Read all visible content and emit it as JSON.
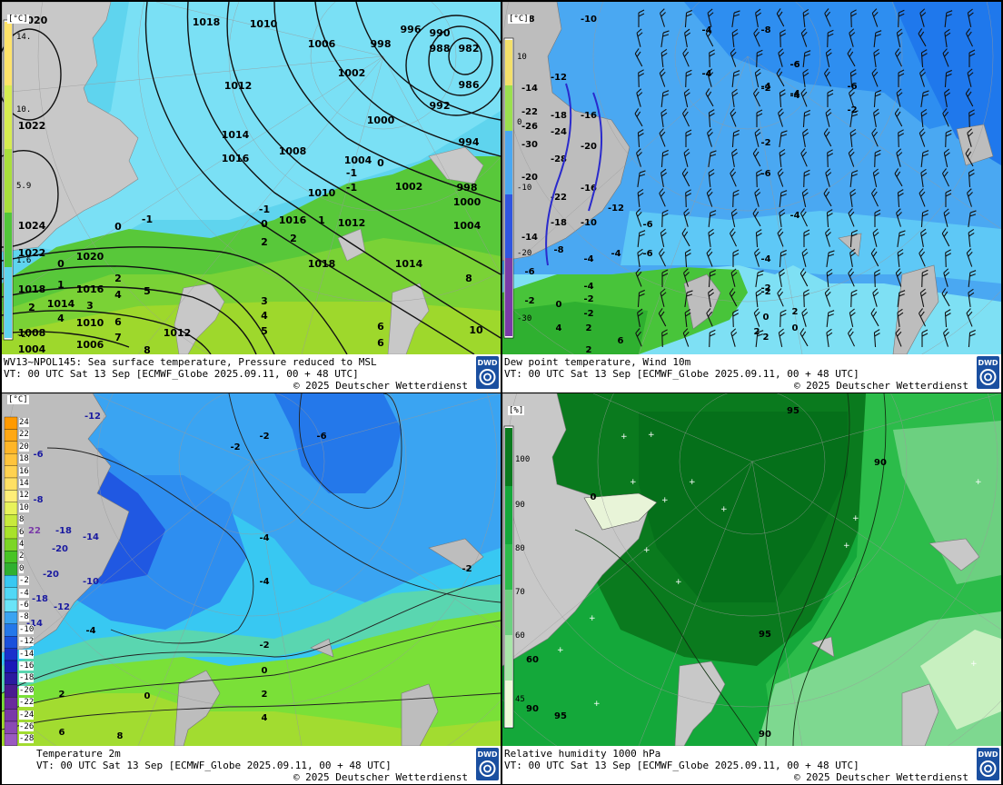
{
  "panels": {
    "p1": {
      "title": "WV13~NPOL145: Sea surface temperature,  Pressure reduced to MSL",
      "vt": "VT: 00 UTC Sat  13 Sep [ECMWF_Globe 2025.09.11, 00 + 48 UTC]",
      "copyright": "© 2025 Deutscher Wetterdienst",
      "unit": "[°C]",
      "legend": [
        "14.",
        "10.",
        "5.9",
        "1.6",
        "-2."
      ],
      "isobars": [
        "1020",
        "1018",
        "1010",
        "1006",
        "1002",
        "998",
        "996",
        "990",
        "988",
        "982",
        "986",
        "992",
        "994",
        "1012",
        "1014",
        "1016",
        "1008",
        "1000",
        "1004",
        "1010",
        "1016",
        "1012",
        "1002",
        "998",
        "1000",
        "1004",
        "1018",
        "1014",
        "1022",
        "1024",
        "1022",
        "1020",
        "1018",
        "1016",
        "1014",
        "1010",
        "1006",
        "1008",
        "1004",
        "1012"
      ],
      "sst": [
        "0",
        "-1",
        "-1",
        "-1",
        "0",
        "0",
        "2",
        "2",
        "1",
        "0",
        "2",
        "2",
        "4",
        "3",
        "5",
        "4",
        "6",
        "7",
        "8",
        "3",
        "4",
        "5",
        "6",
        "6",
        "8",
        "10",
        "-1",
        "1"
      ]
    },
    "p2": {
      "title": "Dew point temperature, Wind 10m",
      "vt": "VT: 00 UTC Sat  13 Sep [ECMWF_Globe 2025.09.11,  00 + 48 UTC]",
      "copyright": "© 2025 Deutscher Wetterdienst",
      "unit": "[°C]",
      "legend": [
        "10",
        "0",
        "-10",
        "-20",
        "-30"
      ],
      "labels": [
        "-8",
        "-10",
        "-12",
        "-14",
        "-22",
        "-26",
        "-18",
        "-16",
        "-24",
        "-30",
        "-28",
        "-20",
        "-20",
        "-22",
        "-16",
        "-18",
        "-10",
        "-12",
        "-14",
        "-8",
        "-6",
        "-6",
        "-4",
        "-4",
        "-4",
        "-2",
        "-2",
        "-2",
        "-4",
        "-4",
        "-6",
        "-6",
        "-2",
        "-2",
        "0",
        "2",
        "4",
        "2",
        "2",
        "2",
        "0",
        "6",
        "2",
        "0",
        "-4",
        "-6",
        "-2",
        "-4",
        "-4",
        "-2",
        "-2",
        "-6",
        "-6",
        "-8",
        "-4",
        "-4"
      ]
    },
    "p3": {
      "title": "Temperature 2m",
      "vt": "VT: 00 UTC Sat  13 Sep [ECMWF_Globe 2025.09.11, 00 + 48 UTC]",
      "copyright": "© 2025 Deutscher Wetterdienst",
      "unit": "[°C]",
      "legend": [
        "24",
        "22",
        "20",
        "18",
        "16",
        "14",
        "12",
        "10",
        "8",
        "6",
        "4",
        "2",
        "0",
        "-2",
        "-4",
        "-6",
        "-8",
        "-10",
        "-12",
        "-14",
        "-16",
        "-18",
        "-20",
        "-22",
        "-24",
        "-26",
        "-28"
      ],
      "labels": [
        "-12",
        "-2",
        "-2",
        "-6",
        "-18",
        "-14",
        "-20",
        "-20",
        "-10",
        "-18",
        "-12",
        "-14",
        "-4",
        "-4",
        "-4",
        "-2",
        "-2",
        "0",
        "0",
        "2",
        "4",
        "2",
        "6",
        "8",
        "22",
        "-8",
        "-6"
      ]
    },
    "p4": {
      "title": "Relative humidity 1000 hPa",
      "vt": "VT: 00 UTC Sat  13 Sep [ECMWF_Globe 2025.09.11,  00 + 48 UTC]",
      "copyright": "© 2025 Deutscher Wetterdienst",
      "unit": "[%]",
      "legend": [
        "100",
        "90",
        "80",
        "70",
        "60",
        "45"
      ],
      "labels": [
        "95",
        "90",
        "95",
        "95",
        "90",
        "90",
        "60",
        "0"
      ]
    }
  },
  "logo": "DWD"
}
